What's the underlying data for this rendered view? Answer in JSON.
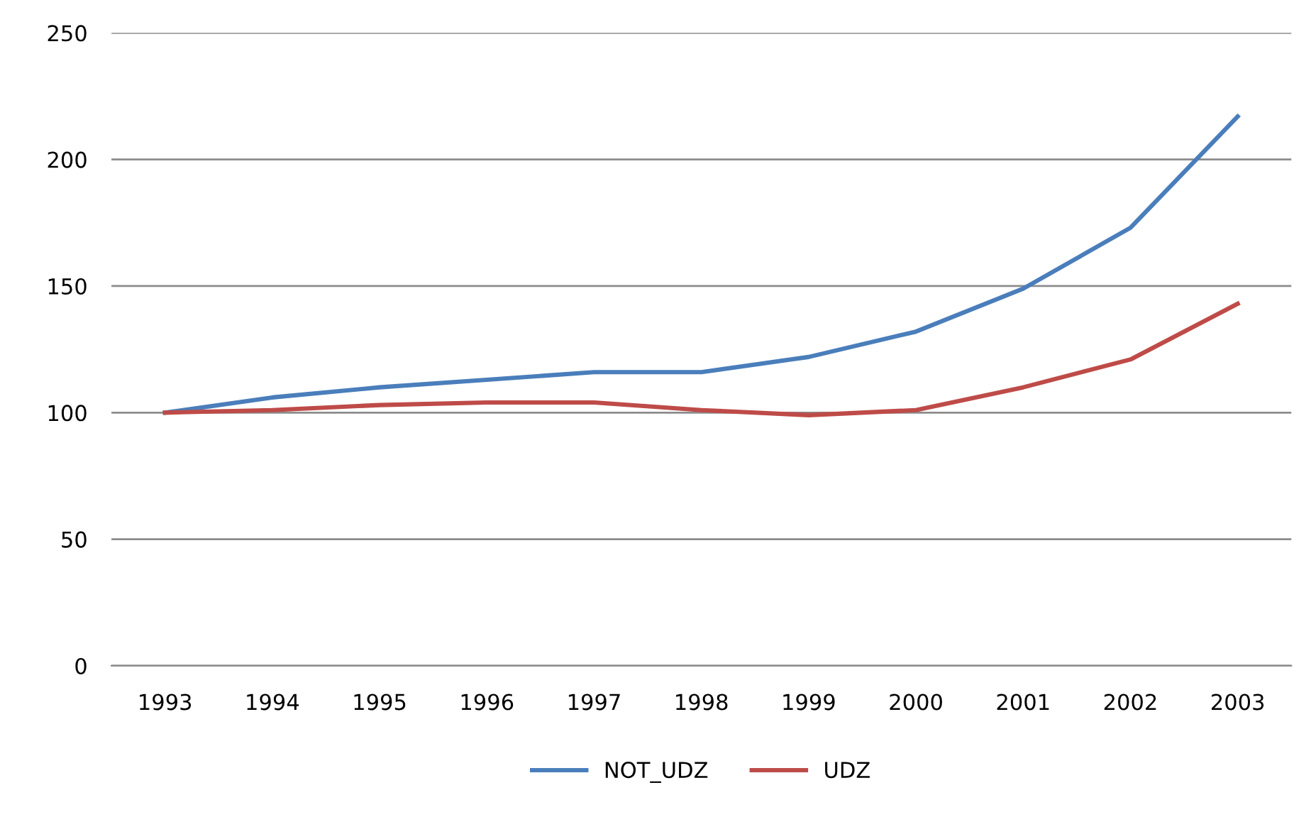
{
  "chart_data": {
    "type": "line",
    "categories": [
      "1993",
      "1994",
      "1995",
      "1996",
      "1997",
      "1998",
      "1999",
      "2000",
      "2001",
      "2002",
      "2003"
    ],
    "series": [
      {
        "name": "NOT_UDZ",
        "color": "#4a7ebb",
        "values": [
          100,
          106,
          110,
          113,
          116,
          116,
          122,
          132,
          149,
          173,
          217
        ]
      },
      {
        "name": "UDZ",
        "color": "#be4b48",
        "values": [
          100,
          101,
          103,
          104,
          104,
          101,
          99,
          101,
          110,
          121,
          143
        ]
      }
    ],
    "ylim": [
      0,
      250
    ],
    "yticks": [
      0,
      50,
      100,
      150,
      200,
      250
    ],
    "grid": "y",
    "legend": "bottom",
    "marker": "none",
    "line_style": "solid"
  }
}
